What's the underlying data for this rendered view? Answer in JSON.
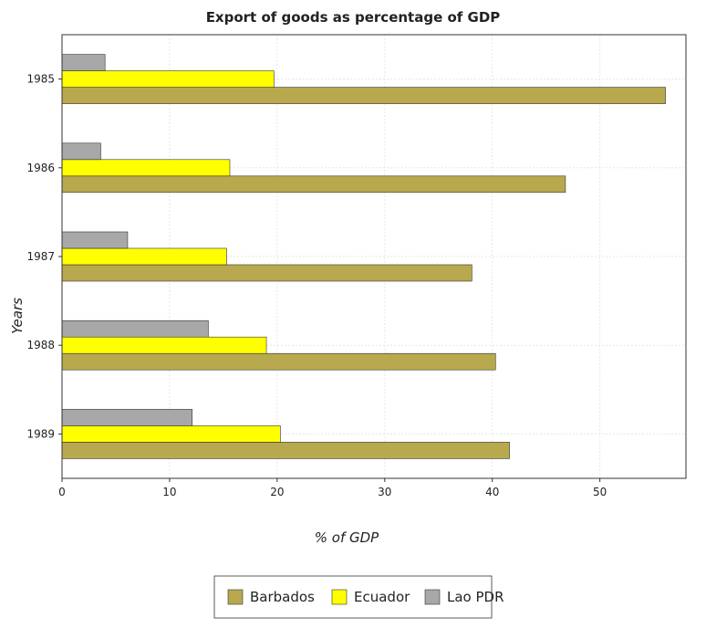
{
  "chart_data": {
    "type": "bar",
    "orientation": "horizontal",
    "title": "Export of goods as percentage of GDP",
    "xlabel": "% of GDP",
    "ylabel": "Years",
    "categories": [
      "1985",
      "1986",
      "1987",
      "1988",
      "1989"
    ],
    "xlim": [
      0,
      58
    ],
    "xticks": [
      0,
      10,
      20,
      30,
      40,
      50
    ],
    "grid": true,
    "legend_position": "bottom-center",
    "series": [
      {
        "name": "Barbados",
        "color": "#b8a94f",
        "values": [
          56.1,
          46.8,
          38.1,
          40.3,
          41.6
        ]
      },
      {
        "name": "Ecuador",
        "color": "#ffff00",
        "values": [
          19.7,
          15.6,
          15.3,
          19.0,
          20.3
        ]
      },
      {
        "name": "Lao PDR",
        "color": "#a8a8a8",
        "values": [
          4.0,
          3.6,
          6.1,
          13.6,
          12.1
        ]
      }
    ]
  }
}
